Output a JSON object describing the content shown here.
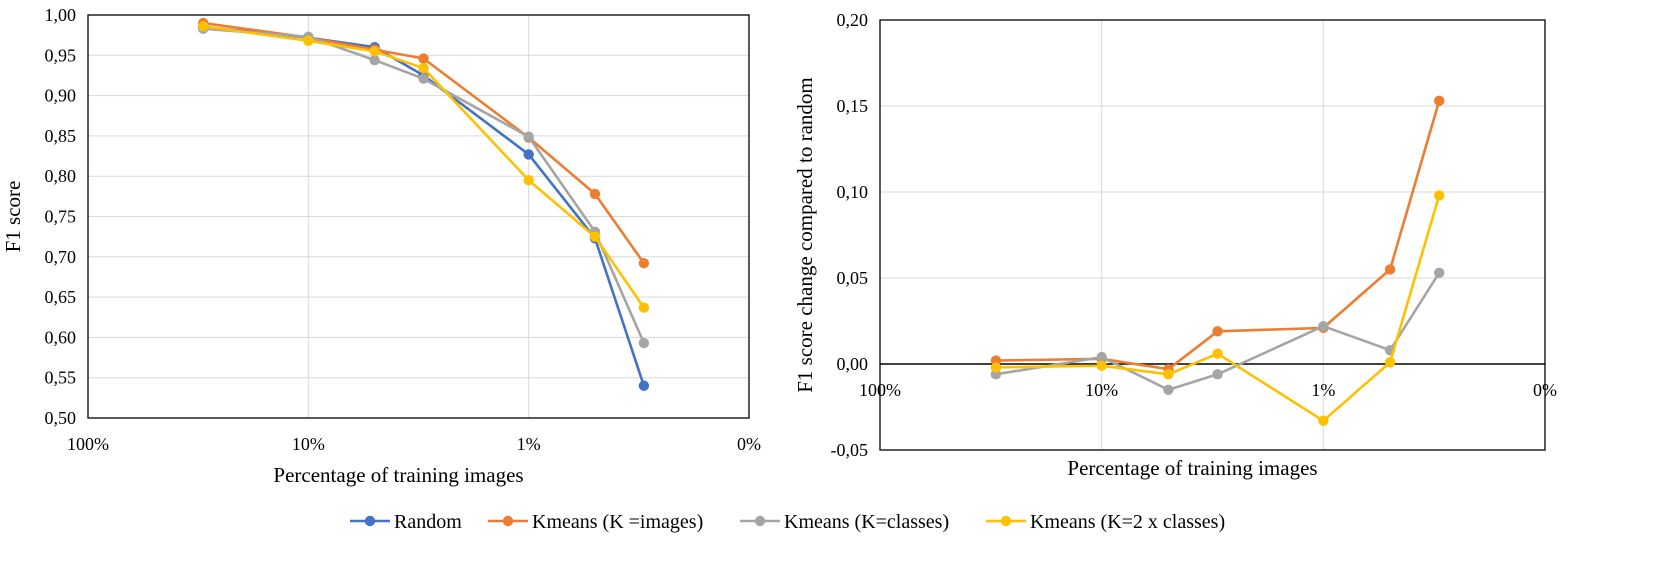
{
  "chart_data": [
    {
      "type": "line",
      "x_scale": "log",
      "xlabel": "Percentage of training images",
      "ylabel": "F1 score",
      "ylim": [
        0.5,
        1.0
      ],
      "yticks": [
        0.5,
        0.55,
        0.6,
        0.65,
        0.7,
        0.75,
        0.8,
        0.85,
        0.9,
        0.95,
        1.0
      ],
      "ytick_labels": [
        "0,50",
        "0,55",
        "0,60",
        "0,65",
        "0,70",
        "0,75",
        "0,80",
        "0,85",
        "0,90",
        "0,95",
        "1,00"
      ],
      "xticks": [
        100,
        10,
        1,
        0.1
      ],
      "xtick_labels": [
        "100%",
        "10%",
        "1%",
        "0%"
      ],
      "x": [
        30,
        10,
        5,
        3,
        1,
        0.5,
        0.3
      ],
      "series": [
        {
          "name": "Random",
          "color": "#4472C4",
          "values": [
            0.985,
            0.972,
            0.96,
            0.925,
            0.827,
            0.723,
            0.54
          ]
        },
        {
          "name": "Kmeans (K =images)",
          "color": "#ED7D31",
          "values": [
            0.99,
            0.972,
            0.957,
            0.946,
            0.848,
            0.778,
            0.692
          ]
        },
        {
          "name": "Kmeans (K=classes)",
          "color": "#A5A5A5",
          "values": [
            0.983,
            0.973,
            0.944,
            0.921,
            0.849,
            0.731,
            0.593
          ]
        },
        {
          "name": "Kmeans (K=2 x classes)",
          "color": "#FFC000",
          "values": [
            0.986,
            0.968,
            0.955,
            0.934,
            0.795,
            0.725,
            0.637
          ]
        }
      ]
    },
    {
      "type": "line",
      "x_scale": "log",
      "xlabel": "Percentage of training images",
      "ylabel": "F1 score change compared to random",
      "ylim": [
        -0.05,
        0.2
      ],
      "yticks": [
        -0.05,
        0,
        0.05,
        0.1,
        0.15,
        0.2
      ],
      "ytick_labels": [
        "-0,05",
        "0,00",
        "0,05",
        "0,10",
        "0,15",
        "0,20"
      ],
      "xticks": [
        100,
        10,
        1,
        0.1
      ],
      "xtick_labels": [
        "100%",
        "10%",
        "1%",
        "0%"
      ],
      "x": [
        30,
        10,
        5,
        3,
        1,
        0.5,
        0.3
      ],
      "series": [
        {
          "name": "Kmeans (K =images)",
          "color": "#ED7D31",
          "values": [
            0.002,
            0.003,
            -0.003,
            0.019,
            0.021,
            0.055,
            0.153
          ]
        },
        {
          "name": "Kmeans (K=classes)",
          "color": "#A5A5A5",
          "values": [
            -0.006,
            0.004,
            -0.015,
            -0.006,
            0.022,
            0.008,
            0.053
          ]
        },
        {
          "name": "Kmeans (K=2 x classes)",
          "color": "#FFC000",
          "values": [
            -0.002,
            -0.001,
            -0.006,
            0.006,
            -0.033,
            0.001,
            0.098
          ]
        }
      ]
    }
  ],
  "legend": {
    "position": "bottom-center",
    "items": [
      {
        "name": "Random",
        "color": "#4472C4"
      },
      {
        "name": "Kmeans (K =images)",
        "color": "#ED7D31"
      },
      {
        "name": "Kmeans (K=classes)",
        "color": "#A5A5A5"
      },
      {
        "name": "Kmeans (K=2 x classes)",
        "color": "#FFC000"
      }
    ]
  }
}
